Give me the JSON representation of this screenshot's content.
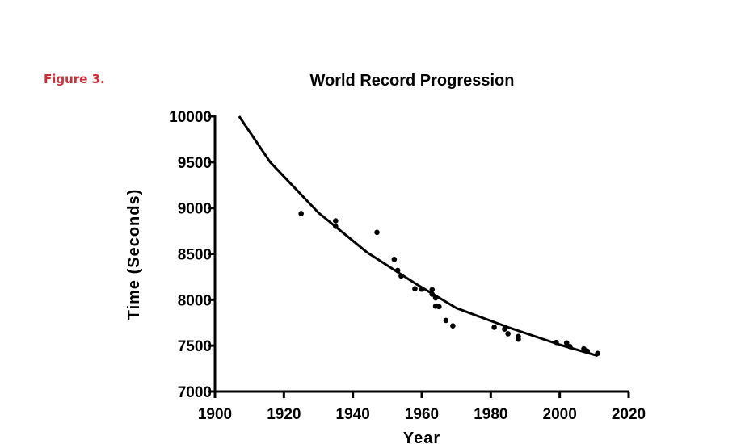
{
  "figure_label": "Figure 3.",
  "chart_data": {
    "type": "scatter",
    "title": "World Record Progression",
    "xlabel": "Year",
    "ylabel": "Time (Seconds)",
    "xlim": [
      1900,
      2020
    ],
    "ylim": [
      7000,
      10000
    ],
    "xticks": [
      1900,
      1920,
      1940,
      1960,
      1980,
      2000,
      2020
    ],
    "yticks": [
      7000,
      7500,
      8000,
      8500,
      9000,
      9500,
      10000
    ],
    "grid": false,
    "colors": {
      "points": "#000000",
      "fit": "#000000",
      "figure_label": "#d42b3a"
    },
    "points": {
      "x": [
        1925,
        1935,
        1935,
        1947,
        1952,
        1953,
        1954,
        1958,
        1960,
        1963,
        1963,
        1964,
        1964,
        1965,
        1967,
        1969,
        1981,
        1984,
        1985,
        1988,
        1988,
        1999,
        2002,
        2003,
        2007,
        2008,
        2011
      ],
      "y": [
        8940,
        8860,
        8800,
        8735,
        8440,
        8320,
        8260,
        8120,
        8115,
        8110,
        8060,
        8020,
        7930,
        7925,
        7775,
        7715,
        7700,
        7680,
        7630,
        7600,
        7570,
        7535,
        7530,
        7490,
        7465,
        7440,
        7415
      ]
    },
    "fit_curve": {
      "x": [
        1907,
        1916,
        1930,
        1944,
        1958,
        1970,
        1985,
        2000,
        2011
      ],
      "y": [
        10000,
        9500,
        8950,
        8520,
        8180,
        7910,
        7700,
        7510,
        7390
      ]
    }
  }
}
